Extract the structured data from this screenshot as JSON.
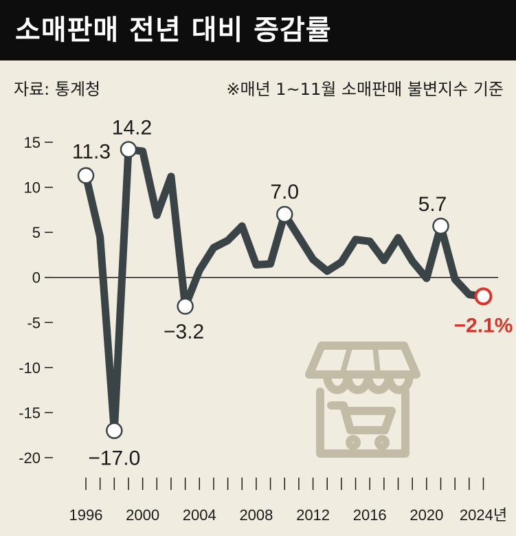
{
  "header": {
    "title": "소매판매 전년 대비 증감률"
  },
  "source": "자료: 통계청",
  "note": "※매년 1~11월 소매판매 불변지수 기준",
  "colors": {
    "line": "#3a4446",
    "highlight": "#d8342b",
    "icon": "#c2bba6",
    "background": "#f1ece0"
  },
  "icon": "shopping-store-icon",
  "chart_data": {
    "type": "line",
    "ylim": [
      -20,
      15
    ],
    "yticks": [
      15,
      10,
      5,
      0,
      -5,
      -10,
      -15,
      -20
    ],
    "ytick_labels": [
      "15",
      "10",
      "5",
      "0",
      "-5",
      "-10",
      "-15",
      "-20"
    ],
    "xticks": [
      1996,
      2000,
      2004,
      2008,
      2012,
      2016,
      2020,
      2024
    ],
    "xtick_labels": [
      "1996",
      "2000",
      "2004",
      "2008",
      "2012",
      "2016",
      "2020",
      "2024년"
    ],
    "x": [
      1996,
      1997,
      1998,
      1999,
      2000,
      2001,
      2002,
      2003,
      2004,
      2005,
      2006,
      2007,
      2008,
      2009,
      2010,
      2011,
      2012,
      2013,
      2014,
      2015,
      2016,
      2017,
      2018,
      2019,
      2020,
      2021,
      2022,
      2023,
      2024
    ],
    "values": [
      11.3,
      4.5,
      -17.0,
      14.2,
      14.0,
      6.9,
      11.2,
      -3.2,
      0.8,
      3.3,
      4.1,
      5.7,
      1.4,
      1.5,
      7.0,
      4.5,
      2.0,
      0.7,
      1.7,
      4.2,
      4.0,
      1.9,
      4.4,
      1.8,
      -0.1,
      5.7,
      -0.2,
      -1.9,
      -2.1
    ],
    "annotations": [
      {
        "year": 1996,
        "value": 11.3,
        "label": "11.3"
      },
      {
        "year": 1998,
        "value": -17.0,
        "label": "−17.0"
      },
      {
        "year": 1999,
        "value": 14.2,
        "label": "14.2"
      },
      {
        "year": 2003,
        "value": -3.2,
        "label": "−3.2"
      },
      {
        "year": 2010,
        "value": 7.0,
        "label": "7.0"
      },
      {
        "year": 2021,
        "value": 5.7,
        "label": "5.7"
      },
      {
        "year": 2024,
        "value": -2.1,
        "label": "−2.1%"
      }
    ]
  }
}
